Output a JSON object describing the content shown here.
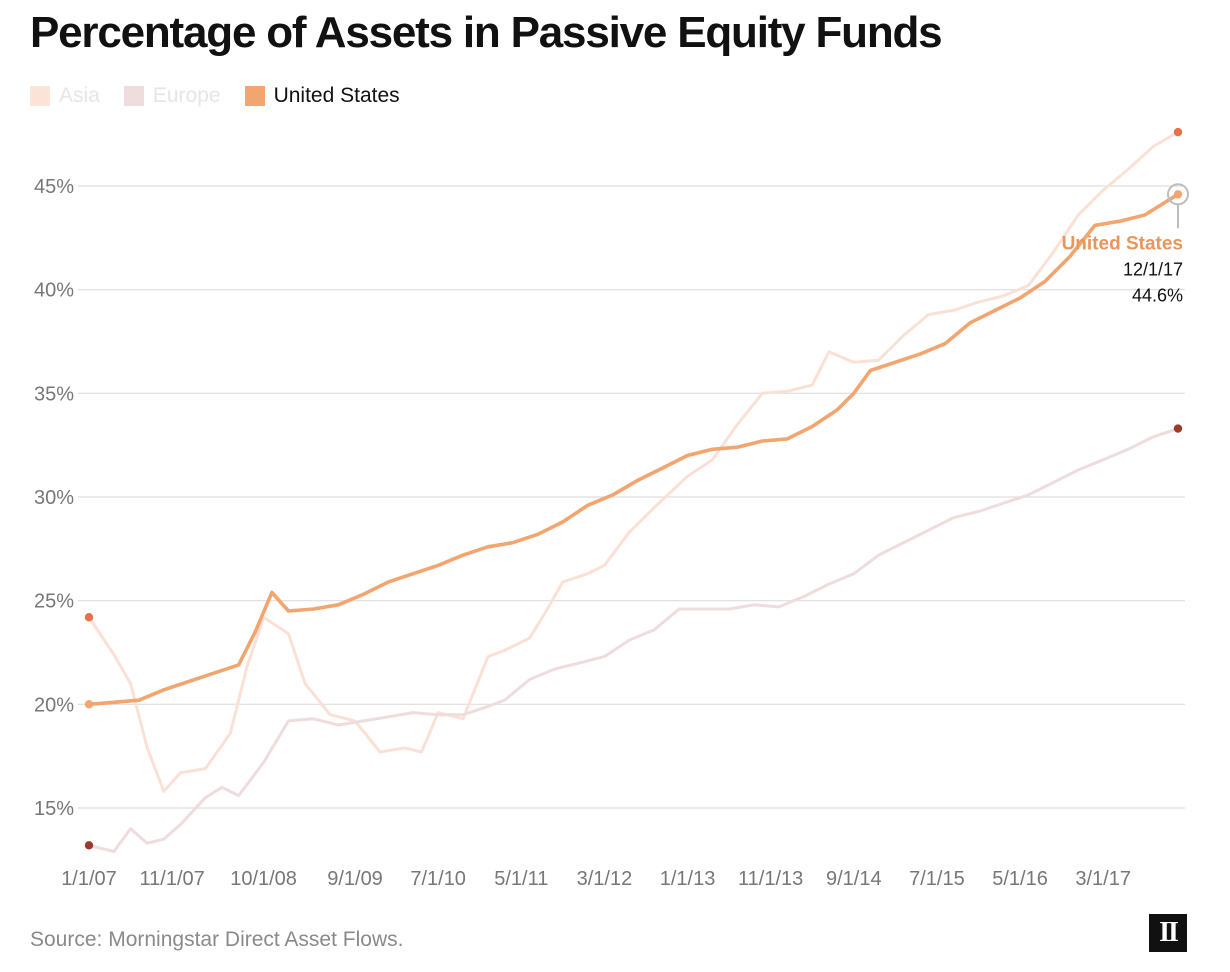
{
  "title": "Percentage of Assets in Passive Equity Funds",
  "source": "Source: Morningstar Direct Asset Flows.",
  "logo_text": "II",
  "legend": [
    {
      "label": "Asia",
      "color": "#fbe3d8",
      "text_color": "#e6e6e6"
    },
    {
      "label": "Europe",
      "color": "#efdcdc",
      "text_color": "#e6e6e6"
    },
    {
      "label": "United States",
      "color": "#f2a56f",
      "text_color": "#111111"
    }
  ],
  "annotation": {
    "label": "United States",
    "date": "12/1/17",
    "value": "44.6%"
  },
  "chart_data": {
    "type": "line",
    "title": "Percentage of Assets in Passive Equity Funds",
    "xlabel": "",
    "ylabel": "",
    "x_ticks": [
      "1/1/07",
      "11/1/07",
      "10/1/08",
      "9/1/09",
      "7/1/10",
      "5/1/11",
      "3/1/12",
      "1/1/13",
      "11/1/13",
      "9/1/14",
      "7/1/15",
      "5/1/16",
      "3/1/17"
    ],
    "y_ticks": [
      "15%",
      "20%",
      "25%",
      "30%",
      "35%",
      "40%",
      "45%"
    ],
    "y_tick_values": [
      15,
      20,
      25,
      30,
      35,
      40,
      45
    ],
    "xlim": [
      "1/1/07",
      "12/1/17"
    ],
    "ylim": [
      12.5,
      48
    ],
    "grid": "horizontal",
    "legend_position": "top-left",
    "series": [
      {
        "name": "Asia",
        "color": "#fbe1d5",
        "end_dot_color": "#e8714a",
        "start_dot_color": "#e8714a",
        "points": [
          [
            "1/1/07",
            24.2
          ],
          [
            "4/1/07",
            22.4
          ],
          [
            "6/1/07",
            21.0
          ],
          [
            "8/1/07",
            17.9
          ],
          [
            "10/1/07",
            15.8
          ],
          [
            "12/1/07",
            16.7
          ],
          [
            "3/1/08",
            16.9
          ],
          [
            "6/1/08",
            18.6
          ],
          [
            "8/1/08",
            21.8
          ],
          [
            "10/1/08",
            24.2
          ],
          [
            "1/1/09",
            23.4
          ],
          [
            "3/1/09",
            21.0
          ],
          [
            "6/1/09",
            19.5
          ],
          [
            "9/1/09",
            19.2
          ],
          [
            "12/1/09",
            17.7
          ],
          [
            "3/1/10",
            17.9
          ],
          [
            "5/1/10",
            17.7
          ],
          [
            "7/1/10",
            19.6
          ],
          [
            "10/1/10",
            19.3
          ],
          [
            "1/1/11",
            22.3
          ],
          [
            "3/1/11",
            22.6
          ],
          [
            "6/1/11",
            23.2
          ],
          [
            "8/1/11",
            24.5
          ],
          [
            "10/1/11",
            25.9
          ],
          [
            "1/1/12",
            26.3
          ],
          [
            "3/1/12",
            26.7
          ],
          [
            "6/1/12",
            28.3
          ],
          [
            "9/1/12",
            29.5
          ],
          [
            "1/1/13",
            31.0
          ],
          [
            "4/1/13",
            31.8
          ],
          [
            "7/1/13",
            33.5
          ],
          [
            "10/1/13",
            35.0
          ],
          [
            "1/1/14",
            35.1
          ],
          [
            "4/1/14",
            35.4
          ],
          [
            "6/1/14",
            37.0
          ],
          [
            "9/1/14",
            36.5
          ],
          [
            "12/1/14",
            36.6
          ],
          [
            "3/1/15",
            37.8
          ],
          [
            "6/1/15",
            38.8
          ],
          [
            "9/1/15",
            39.0
          ],
          [
            "12/1/15",
            39.4
          ],
          [
            "3/1/16",
            39.7
          ],
          [
            "6/1/16",
            40.2
          ],
          [
            "9/1/16",
            41.8
          ],
          [
            "12/1/16",
            43.6
          ],
          [
            "3/1/17",
            44.8
          ],
          [
            "6/1/17",
            45.8
          ],
          [
            "9/1/17",
            46.9
          ],
          [
            "12/1/17",
            47.6
          ]
        ]
      },
      {
        "name": "Europe",
        "color": "#efdcdc",
        "end_dot_color": "#9e3a2a",
        "start_dot_color": "#9e3a2a",
        "points": [
          [
            "1/1/07",
            13.2
          ],
          [
            "4/1/07",
            12.9
          ],
          [
            "6/1/07",
            14.0
          ],
          [
            "8/1/07",
            13.3
          ],
          [
            "10/1/07",
            13.5
          ],
          [
            "12/1/07",
            14.2
          ],
          [
            "3/1/08",
            15.5
          ],
          [
            "5/1/08",
            16.0
          ],
          [
            "7/1/08",
            15.6
          ],
          [
            "10/1/08",
            17.2
          ],
          [
            "1/1/09",
            19.2
          ],
          [
            "4/1/09",
            19.3
          ],
          [
            "7/1/09",
            19.0
          ],
          [
            "10/1/09",
            19.2
          ],
          [
            "1/1/10",
            19.4
          ],
          [
            "4/1/10",
            19.6
          ],
          [
            "7/1/10",
            19.5
          ],
          [
            "10/1/10",
            19.5
          ],
          [
            "1/1/11",
            19.9
          ],
          [
            "3/1/11",
            20.2
          ],
          [
            "6/1/11",
            21.2
          ],
          [
            "9/1/11",
            21.7
          ],
          [
            "12/1/11",
            22.0
          ],
          [
            "3/1/12",
            22.3
          ],
          [
            "6/1/12",
            23.1
          ],
          [
            "9/1/12",
            23.6
          ],
          [
            "12/1/12",
            24.6
          ],
          [
            "3/1/13",
            24.6
          ],
          [
            "6/1/13",
            24.6
          ],
          [
            "9/1/13",
            24.8
          ],
          [
            "12/1/13",
            24.7
          ],
          [
            "3/1/14",
            25.2
          ],
          [
            "6/1/14",
            25.8
          ],
          [
            "9/1/14",
            26.3
          ],
          [
            "12/1/14",
            27.2
          ],
          [
            "3/1/15",
            27.8
          ],
          [
            "6/1/15",
            28.4
          ],
          [
            "9/1/15",
            29.0
          ],
          [
            "12/1/15",
            29.3
          ],
          [
            "3/1/16",
            29.7
          ],
          [
            "6/1/16",
            30.1
          ],
          [
            "9/1/16",
            30.7
          ],
          [
            "12/1/16",
            31.3
          ],
          [
            "3/1/17",
            31.8
          ],
          [
            "6/1/17",
            32.3
          ],
          [
            "9/1/17",
            32.9
          ],
          [
            "12/1/17",
            33.3
          ]
        ]
      },
      {
        "name": "United States",
        "color": "#f2a56f",
        "end_dot_color": "#f2a56f",
        "start_dot_color": "#f2a56f",
        "points": [
          [
            "1/1/07",
            20.0
          ],
          [
            "4/1/07",
            20.1
          ],
          [
            "7/1/07",
            20.2
          ],
          [
            "10/1/07",
            20.7
          ],
          [
            "1/1/08",
            21.1
          ],
          [
            "4/1/08",
            21.5
          ],
          [
            "7/1/08",
            21.9
          ],
          [
            "9/1/08",
            23.5
          ],
          [
            "11/1/08",
            25.4
          ],
          [
            "1/1/09",
            24.5
          ],
          [
            "4/1/09",
            24.6
          ],
          [
            "7/1/09",
            24.8
          ],
          [
            "10/1/09",
            25.3
          ],
          [
            "1/1/10",
            25.9
          ],
          [
            "4/1/10",
            26.3
          ],
          [
            "7/1/10",
            26.7
          ],
          [
            "10/1/10",
            27.2
          ],
          [
            "1/1/11",
            27.6
          ],
          [
            "4/1/11",
            27.8
          ],
          [
            "7/1/11",
            28.2
          ],
          [
            "10/1/11",
            28.8
          ],
          [
            "1/1/12",
            29.6
          ],
          [
            "4/1/12",
            30.1
          ],
          [
            "7/1/12",
            30.8
          ],
          [
            "10/1/12",
            31.4
          ],
          [
            "1/1/13",
            32.0
          ],
          [
            "4/1/13",
            32.3
          ],
          [
            "7/1/13",
            32.4
          ],
          [
            "10/1/13",
            32.7
          ],
          [
            "1/1/14",
            32.8
          ],
          [
            "4/1/14",
            33.4
          ],
          [
            "7/1/14",
            34.2
          ],
          [
            "9/1/14",
            35.0
          ],
          [
            "11/1/14",
            36.1
          ],
          [
            "2/1/15",
            36.5
          ],
          [
            "5/1/15",
            36.9
          ],
          [
            "8/1/15",
            37.4
          ],
          [
            "11/1/15",
            38.4
          ],
          [
            "2/1/16",
            39.0
          ],
          [
            "5/1/16",
            39.6
          ],
          [
            "8/1/16",
            40.4
          ],
          [
            "11/1/16",
            41.6
          ],
          [
            "2/1/17",
            43.1
          ],
          [
            "5/1/17",
            43.3
          ],
          [
            "8/1/17",
            43.6
          ],
          [
            "12/1/17",
            44.6
          ]
        ]
      }
    ]
  }
}
